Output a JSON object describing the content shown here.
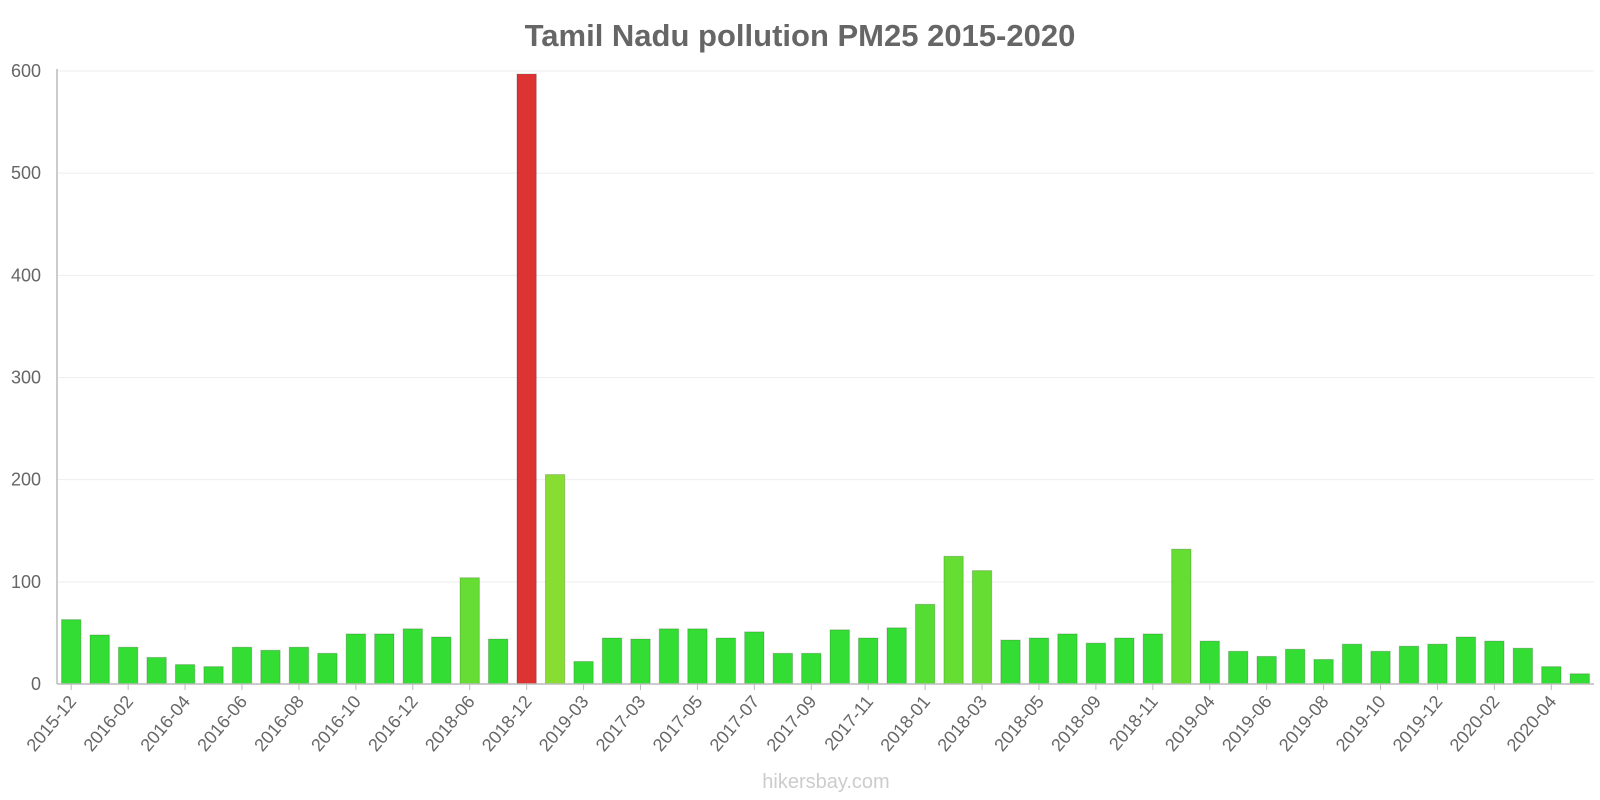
{
  "chart_data": {
    "type": "bar",
    "title": "Tamil Nadu pollution PM25 2015-2020",
    "xlabel": "",
    "ylabel": "",
    "ylim": [
      0,
      600
    ],
    "yticks": [
      0,
      100,
      200,
      300,
      400,
      500,
      600
    ],
    "grid": true,
    "legend": "none",
    "categories": [
      "2015-12",
      "2016-01",
      "2016-02",
      "2016-03",
      "2016-04",
      "2016-05",
      "2016-06",
      "2016-07",
      "2016-08",
      "2016-09",
      "2016-10",
      "2016-11",
      "2016-12",
      "2017-01",
      "2018-06",
      "2018-07",
      "2018-12",
      "2019-01",
      "2019-03",
      "2017-02",
      "2017-03",
      "2017-04",
      "2017-05",
      "2017-06",
      "2017-07",
      "2017-08",
      "2017-09",
      "2017-10",
      "2017-11",
      "2017-12",
      "2018-01",
      "2018-02",
      "2018-03",
      "2018-04",
      "2018-05",
      "2018-08",
      "2018-09",
      "2018-10",
      "2018-11",
      "2019-02",
      "2019-04",
      "2019-05",
      "2019-06",
      "2019-07",
      "2019-08",
      "2019-09",
      "2019-10",
      "2019-11",
      "2019-12",
      "2020-01",
      "2020-02",
      "2020-03",
      "2020-04",
      "2020-05"
    ],
    "xtick_labels": [
      "2015-12",
      "2016-02",
      "2016-04",
      "2016-06",
      "2016-08",
      "2016-10",
      "2016-12",
      "2018-06",
      "2018-12",
      "2019-03",
      "2017-03",
      "2017-05",
      "2017-07",
      "2017-09",
      "2017-11",
      "2018-01",
      "2018-03",
      "2018-05",
      "2018-09",
      "2018-11",
      "2019-04",
      "2019-06",
      "2019-08",
      "2019-10",
      "2019-12",
      "2020-02",
      "2020-04"
    ],
    "values": [
      63,
      48,
      36,
      26,
      19,
      17,
      36,
      33,
      36,
      30,
      49,
      49,
      54,
      46,
      104,
      44,
      597,
      205,
      22,
      45,
      44,
      54,
      54,
      45,
      51,
      30,
      30,
      53,
      45,
      55,
      78,
      125,
      111,
      43,
      45,
      49,
      40,
      45,
      49,
      132,
      42,
      32,
      27,
      34,
      24,
      39,
      32,
      37,
      39,
      46,
      42,
      35,
      17,
      10
    ],
    "colors": [
      "#33dd33",
      "#33dd33",
      "#33dd33",
      "#33dd33",
      "#33dd33",
      "#33dd33",
      "#33dd33",
      "#33dd33",
      "#33dd33",
      "#33dd33",
      "#33dd33",
      "#33dd33",
      "#33dd33",
      "#33dd33",
      "#66dd33",
      "#33dd33",
      "#dd3333",
      "#88dd33",
      "#33dd33",
      "#33dd33",
      "#33dd33",
      "#33dd33",
      "#33dd33",
      "#33dd33",
      "#33dd33",
      "#33dd33",
      "#33dd33",
      "#33dd33",
      "#33dd33",
      "#33dd33",
      "#55dd33",
      "#66dd33",
      "#66dd33",
      "#33dd33",
      "#33dd33",
      "#33dd33",
      "#33dd33",
      "#33dd33",
      "#33dd33",
      "#66dd33",
      "#33dd33",
      "#33dd33",
      "#33dd33",
      "#33dd33",
      "#33dd33",
      "#33dd33",
      "#33dd33",
      "#33dd33",
      "#33dd33",
      "#33dd33",
      "#33dd33",
      "#33dd33",
      "#33dd33",
      "#33dd33"
    ]
  },
  "watermark": "hikersbay.com"
}
